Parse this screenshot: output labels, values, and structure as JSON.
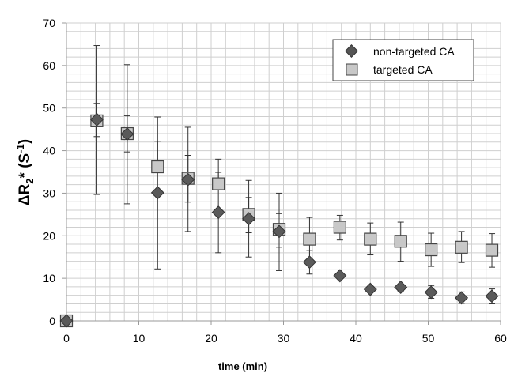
{
  "chart_data": {
    "type": "scatter",
    "title": "",
    "xlabel": "time (min)",
    "ylabel": {
      "main": "ΔR",
      "sub": "2",
      "star": "* (S",
      "sup": "-1",
      "close": ")"
    },
    "xlim": [
      0,
      60
    ],
    "ylim": [
      0,
      70
    ],
    "xticks": [
      "0",
      "10",
      "20",
      "30",
      "40",
      "50",
      "60"
    ],
    "yticks": [
      "0",
      "10",
      "20",
      "30",
      "40",
      "50",
      "60",
      "70"
    ],
    "grid": true,
    "legend_position": "top-right",
    "x": [
      0,
      4.2,
      8.4,
      12.6,
      16.8,
      21,
      25.2,
      29.4,
      33.6,
      37.8,
      42,
      46.2,
      50.4,
      54.6,
      58.8
    ],
    "series": [
      {
        "name": "targeted CA",
        "marker": "square",
        "color": "#c8c8c8",
        "values": [
          0,
          47,
          44,
          36.2,
          33.5,
          32.2,
          25,
          21.5,
          19.2,
          22,
          19.2,
          18.7,
          16.7,
          17.3,
          16.6
        ],
        "err_low": [
          0,
          43.3,
          39.7,
          36.2,
          27.9,
          32.2,
          20.7,
          17.3,
          14.3,
          19,
          15.5,
          14,
          12.8,
          13.7,
          12.6
        ],
        "err_high": [
          0,
          51.1,
          48.2,
          42.2,
          38.9,
          34.9,
          29,
          25.2,
          24.3,
          24.8,
          23,
          23.2,
          20.6,
          21,
          20.5
        ]
      },
      {
        "name": "non-targeted CA",
        "marker": "diamond",
        "color": "#5a5a5a",
        "values": [
          0,
          47.3,
          43.9,
          30.1,
          33.2,
          25.5,
          24,
          21,
          13.8,
          10.6,
          7.4,
          7.9,
          6.7,
          5.4,
          5.8
        ],
        "err_low": [
          0,
          29.7,
          27.5,
          12.2,
          21,
          16,
          15,
          11.8,
          11,
          10,
          7,
          7,
          5.3,
          4.1,
          4
        ],
        "err_high": [
          0,
          64.7,
          60.2,
          47.9,
          45.5,
          38,
          33,
          30,
          16.5,
          11.2,
          7.8,
          8.6,
          8.3,
          6.8,
          7.5
        ]
      }
    ],
    "legend": [
      "non-targeted CA",
      "targeted CA"
    ]
  }
}
